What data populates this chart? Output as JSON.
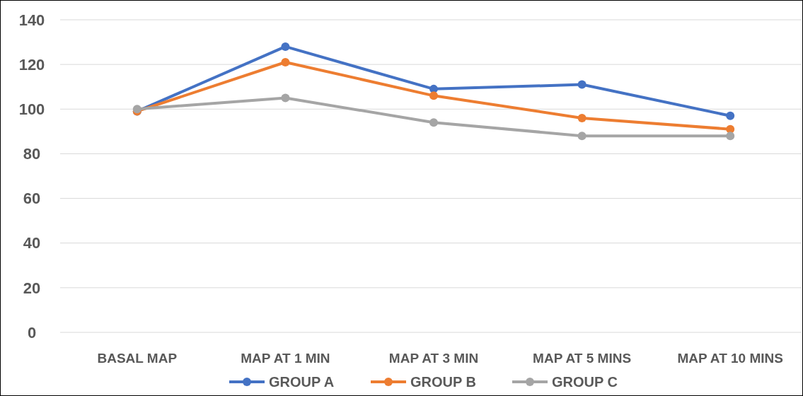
{
  "chart_data": {
    "type": "line",
    "categories": [
      "BASAL MAP",
      "MAP AT 1 MIN",
      "MAP AT 3 MIN",
      "MAP AT 5 MINS",
      "MAP AT 10 MINS"
    ],
    "series": [
      {
        "name": "GROUP A",
        "color": "#4472c4",
        "values": [
          99,
          128,
          109,
          111,
          97
        ]
      },
      {
        "name": "GROUP B",
        "color": "#ed7d31",
        "values": [
          99,
          121,
          106,
          96,
          91
        ]
      },
      {
        "name": "GROUP C",
        "color": "#a5a5a5",
        "values": [
          100,
          105,
          94,
          88,
          88
        ]
      }
    ],
    "ylim": [
      0,
      140
    ],
    "yticks": [
      0,
      20,
      40,
      60,
      80,
      100,
      120,
      140
    ],
    "grid": "y",
    "legend": "bottom",
    "marker": "circle",
    "line_style": "solid"
  }
}
